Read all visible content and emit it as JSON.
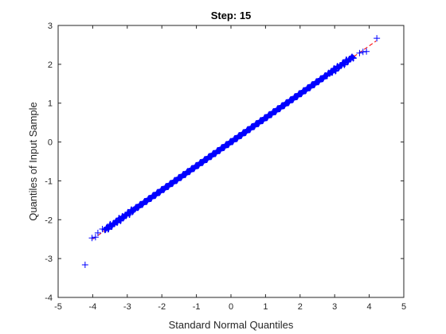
{
  "chart_data": {
    "type": "scatter",
    "title": "Step:  15",
    "xlabel": "Standard Normal Quantiles",
    "ylabel": "Quantiles of Input Sample",
    "xlim": [
      -5,
      5
    ],
    "ylim": [
      -4,
      3
    ],
    "xticks": [
      "-5",
      "-4",
      "-3",
      "-2",
      "-1",
      "0",
      "1",
      "2",
      "3",
      "4",
      "5"
    ],
    "yticks": [
      "-4",
      "-3",
      "-2",
      "-1",
      "0",
      "1",
      "2",
      "3"
    ],
    "grid": false,
    "box": true,
    "marker": "+",
    "marker_color": "#0000ff",
    "reference_line": {
      "style": "dashed",
      "color": "#ff0000",
      "from": [
        -4.0,
        -2.5
      ],
      "to": [
        4.2,
        2.6
      ]
    },
    "series": [
      {
        "points": [
          [
            -4.22,
            -3.16
          ],
          [
            -4.02,
            -2.47
          ],
          [
            -3.92,
            -2.45
          ],
          [
            -3.85,
            -2.34
          ],
          [
            -3.72,
            -2.24
          ],
          [
            3.72,
            2.29
          ],
          [
            3.82,
            2.32
          ],
          [
            3.92,
            2.33
          ],
          [
            4.22,
            2.67
          ]
        ],
        "dense_band": {
          "x_range": [
            -3.65,
            3.55
          ],
          "slope": 0.62,
          "intercept": 0.0
        }
      }
    ]
  }
}
